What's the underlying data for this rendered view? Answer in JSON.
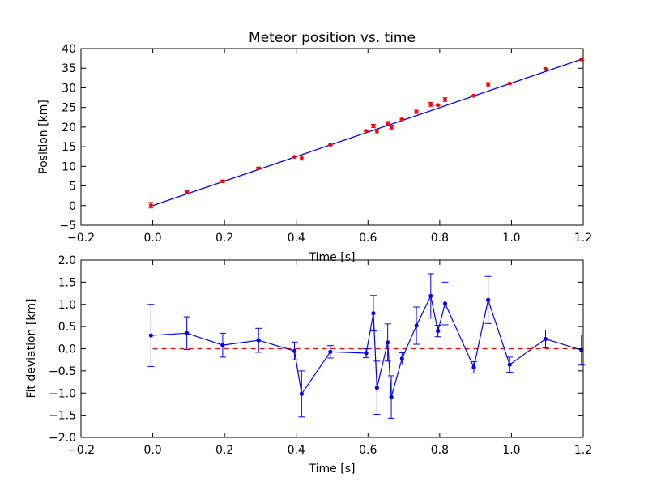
{
  "chart_data": [
    {
      "type": "scatter",
      "title": "Meteor position vs. time",
      "xlabel": "Time [s]",
      "ylabel": "Position [km]",
      "xlim": [
        -0.2,
        1.2
      ],
      "ylim": [
        -5,
        40
      ],
      "xticks": [
        "−0.2",
        "0.0",
        "0.2",
        "0.4",
        "0.6",
        "0.8",
        "1.0",
        "1.2"
      ],
      "yticks": [
        "−5",
        "0",
        "5",
        "10",
        "15",
        "20",
        "25",
        "30",
        "35",
        "40"
      ],
      "grid": false,
      "colors": {
        "points": "#ff0000",
        "fit": "#0000ff",
        "axes": "#000000"
      },
      "fit_line": {
        "slope": 31.2,
        "intercept": 0.0
      },
      "series": [
        {
          "x": [
            -0.005,
            0.095,
            0.195,
            0.295,
            0.395,
            0.415,
            0.495,
            0.595,
            0.615,
            0.625,
            0.655,
            0.665,
            0.695,
            0.735,
            0.775,
            0.795,
            0.815,
            0.895,
            0.935,
            0.995,
            1.095,
            1.195
          ],
          "y": [
            0.1,
            3.4,
            6.2,
            9.5,
            12.4,
            12.1,
            15.5,
            19.0,
            20.3,
            18.9,
            21.0,
            20.0,
            22.0,
            23.9,
            25.8,
            25.6,
            27.0,
            28.0,
            30.8,
            31.1,
            34.8,
            37.3
          ],
          "yerr": [
            0.7,
            0.37,
            0.27,
            0.27,
            0.2,
            0.52,
            0.14,
            0.1,
            0.4,
            0.6,
            0.42,
            0.48,
            0.13,
            0.42,
            0.5,
            0.13,
            0.48,
            0.13,
            0.53,
            0.17,
            0.2,
            0.34
          ]
        }
      ]
    },
    {
      "type": "line",
      "title": "",
      "xlabel": "Time [s]",
      "ylabel": "Fit deviation [km]",
      "xlim": [
        -0.2,
        1.2
      ],
      "ylim": [
        -2.0,
        2.0
      ],
      "xticks": [
        "−0.2",
        "0.0",
        "0.2",
        "0.4",
        "0.6",
        "0.8",
        "1.0",
        "1.2"
      ],
      "yticks": [
        "−2.0",
        "−1.5",
        "−1.0",
        "−0.5",
        "0.0",
        "0.5",
        "1.0",
        "1.5",
        "2.0"
      ],
      "grid": false,
      "reference_line": {
        "y": 0.0,
        "style": "dashed"
      },
      "colors": {
        "series": "#0000ff",
        "reference": "#ff0000",
        "axes": "#000000"
      },
      "series": [
        {
          "x": [
            -0.005,
            0.095,
            0.195,
            0.295,
            0.395,
            0.415,
            0.495,
            0.595,
            0.615,
            0.625,
            0.655,
            0.665,
            0.695,
            0.735,
            0.775,
            0.795,
            0.815,
            0.895,
            0.935,
            0.995,
            1.095,
            1.195
          ],
          "y": [
            0.3,
            0.35,
            0.08,
            0.19,
            -0.05,
            -1.02,
            -0.07,
            -0.1,
            0.8,
            -0.88,
            0.14,
            -1.09,
            -0.22,
            0.52,
            1.19,
            0.4,
            1.02,
            -0.42,
            1.1,
            -0.36,
            0.22,
            -0.03
          ],
          "yerr": [
            0.7,
            0.37,
            0.27,
            0.27,
            0.2,
            0.52,
            0.14,
            0.1,
            0.4,
            0.6,
            0.42,
            0.48,
            0.13,
            0.42,
            0.5,
            0.13,
            0.48,
            0.13,
            0.53,
            0.17,
            0.2,
            0.34
          ]
        }
      ]
    }
  ]
}
